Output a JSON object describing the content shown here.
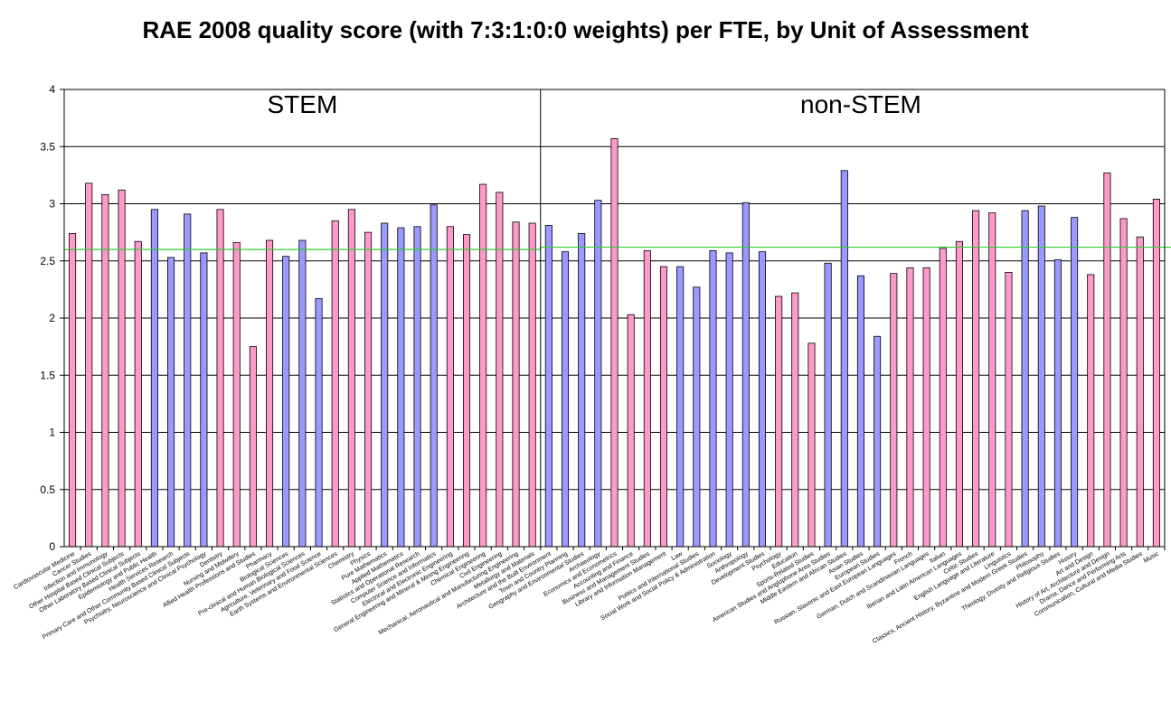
{
  "chart_data": {
    "type": "bar",
    "title": "RAE 2008 quality score (with 7:3:1:0:0 weights) per FTE, by Unit of Assessment",
    "xlabel": "",
    "ylabel": "",
    "ylim": [
      0,
      4
    ],
    "yticks": [
      "0",
      "0.5",
      "1",
      "1.5",
      "2",
      "2.5",
      "3",
      "3.5",
      "4"
    ],
    "grid": true,
    "legend": "none",
    "colors": {
      "pink": "#ff99cc",
      "blue": "#9999ff",
      "reference_line": "#33cc33",
      "outline": "#000000"
    },
    "regions": [
      {
        "label": "STEM",
        "first_index": 0,
        "last_index": 28,
        "reference_value": 2.6
      },
      {
        "label": "non-STEM",
        "first_index": 29,
        "last_index": 67,
        "reference_value": 2.62
      }
    ],
    "bars": [
      {
        "label": "Cardiovascular Medicine",
        "value": 2.74,
        "color": "pink"
      },
      {
        "label": "Cancer Studies",
        "value": 3.18,
        "color": "pink"
      },
      {
        "label": "Infection and Immunology",
        "value": 3.08,
        "color": "pink"
      },
      {
        "label": "Other Hospital Based Clinical Subjects",
        "value": 3.12,
        "color": "pink"
      },
      {
        "label": "Other Laboratory Based Clinical Subjects",
        "value": 2.67,
        "color": "pink"
      },
      {
        "label": "Epidemiology and Public Health",
        "value": 2.95,
        "color": "blue"
      },
      {
        "label": "Health Services Research",
        "value": 2.53,
        "color": "blue"
      },
      {
        "label": "Primary Care and Other Community Based Clinical Subjects",
        "value": 2.91,
        "color": "blue"
      },
      {
        "label": "Psychiatry, Neuroscience and Clinical Psychology",
        "value": 2.57,
        "color": "blue"
      },
      {
        "label": "Dentistry",
        "value": 2.95,
        "color": "pink"
      },
      {
        "label": "Nursing and Midwifery",
        "value": 2.66,
        "color": "pink"
      },
      {
        "label": "Allied Health Professions and Studies",
        "value": 1.75,
        "color": "pink"
      },
      {
        "label": "Pharmacy",
        "value": 2.68,
        "color": "pink"
      },
      {
        "label": "Biological Sciences",
        "value": 2.54,
        "color": "blue"
      },
      {
        "label": "Pre-clinical and Human Biological Sciences",
        "value": 2.68,
        "color": "blue"
      },
      {
        "label": "Agriculture, Veterinary and Food Science",
        "value": 2.17,
        "color": "blue"
      },
      {
        "label": "Earth Systems and Environmental Sciences",
        "value": 2.85,
        "color": "pink"
      },
      {
        "label": "Chemistry",
        "value": 2.95,
        "color": "pink"
      },
      {
        "label": "Physics",
        "value": 2.75,
        "color": "pink"
      },
      {
        "label": "Pure Mathematics",
        "value": 2.83,
        "color": "blue"
      },
      {
        "label": "Applied Mathematics",
        "value": 2.79,
        "color": "blue"
      },
      {
        "label": "Statistics and Operational Research",
        "value": 2.8,
        "color": "blue"
      },
      {
        "label": "Computer Science and Informatics",
        "value": 2.99,
        "color": "blue"
      },
      {
        "label": "Electrical and Electronic Engineering",
        "value": 2.8,
        "color": "pink"
      },
      {
        "label": "General Engineering and Mineral & Mining Engineering",
        "value": 2.73,
        "color": "pink"
      },
      {
        "label": "Chemical Engineering",
        "value": 3.17,
        "color": "pink"
      },
      {
        "label": "Civil Engineering",
        "value": 3.1,
        "color": "pink"
      },
      {
        "label": "Mechanical, Aeronautical and Manufacturing Engineering",
        "value": 2.84,
        "color": "pink"
      },
      {
        "label": "Metallurgy and Materials",
        "value": 2.83,
        "color": "pink"
      },
      {
        "label": "Architecture and the Built Environment",
        "value": 2.81,
        "color": "blue"
      },
      {
        "label": "Town and Country Planning",
        "value": 2.58,
        "color": "blue"
      },
      {
        "label": "Geography and Environmental Studies",
        "value": 2.74,
        "color": "blue"
      },
      {
        "label": "Archaeology",
        "value": 3.03,
        "color": "blue"
      },
      {
        "label": "Economics and Econometrics",
        "value": 3.57,
        "color": "pink"
      },
      {
        "label": "Accounting and Finance",
        "value": 2.03,
        "color": "pink"
      },
      {
        "label": "Business and Management Studies",
        "value": 2.59,
        "color": "pink"
      },
      {
        "label": "Library and Information Management",
        "value": 2.45,
        "color": "pink"
      },
      {
        "label": "Law",
        "value": 2.45,
        "color": "blue"
      },
      {
        "label": "Politics and International Studies",
        "value": 2.27,
        "color": "blue"
      },
      {
        "label": "Social Work and Social Policy & Administration",
        "value": 2.59,
        "color": "blue"
      },
      {
        "label": "Sociology",
        "value": 2.57,
        "color": "blue"
      },
      {
        "label": "Anthropology",
        "value": 3.01,
        "color": "blue"
      },
      {
        "label": "Development Studies",
        "value": 2.58,
        "color": "blue"
      },
      {
        "label": "Psychology",
        "value": 2.19,
        "color": "pink"
      },
      {
        "label": "Education",
        "value": 2.22,
        "color": "pink"
      },
      {
        "label": "Sports-Related Studies",
        "value": 1.78,
        "color": "pink"
      },
      {
        "label": "American Studies and Anglophone Area Studies",
        "value": 2.48,
        "color": "blue"
      },
      {
        "label": "Middle Eastern and African Studies",
        "value": 3.29,
        "color": "blue"
      },
      {
        "label": "Asian Studies",
        "value": 2.37,
        "color": "blue"
      },
      {
        "label": "European Studies",
        "value": 1.84,
        "color": "blue"
      },
      {
        "label": "Russian, Slavonic and East European Languages",
        "value": 2.39,
        "color": "pink"
      },
      {
        "label": "French",
        "value": 2.44,
        "color": "pink"
      },
      {
        "label": "German, Dutch and Scandinavian Languages",
        "value": 2.44,
        "color": "pink"
      },
      {
        "label": "Italian",
        "value": 2.61,
        "color": "pink"
      },
      {
        "label": "Iberian and Latin American Languages",
        "value": 2.67,
        "color": "pink"
      },
      {
        "label": "Celtic Studies",
        "value": 2.94,
        "color": "pink"
      },
      {
        "label": "English Language and Literature",
        "value": 2.92,
        "color": "pink"
      },
      {
        "label": "Linguistics",
        "value": 2.4,
        "color": "pink"
      },
      {
        "label": "Classics, Ancient History, Byzantine and Modern Greek Studies",
        "value": 2.94,
        "color": "blue"
      },
      {
        "label": "Philosophy",
        "value": 2.98,
        "color": "blue"
      },
      {
        "label": "Theology, Divinity and Religious Studies",
        "value": 2.51,
        "color": "blue"
      },
      {
        "label": "History",
        "value": 2.88,
        "color": "blue"
      },
      {
        "label": "Art and Design",
        "value": 2.38,
        "color": "pink"
      },
      {
        "label": "History of Art, Architecture and Design",
        "value": 3.27,
        "color": "pink"
      },
      {
        "label": "Drama, Dance and Performing Arts",
        "value": 2.87,
        "color": "pink"
      },
      {
        "label": "Communication, Cultural and Media Studies",
        "value": 2.71,
        "color": "pink"
      },
      {
        "label": "Music",
        "value": 3.04,
        "color": "pink"
      }
    ]
  }
}
